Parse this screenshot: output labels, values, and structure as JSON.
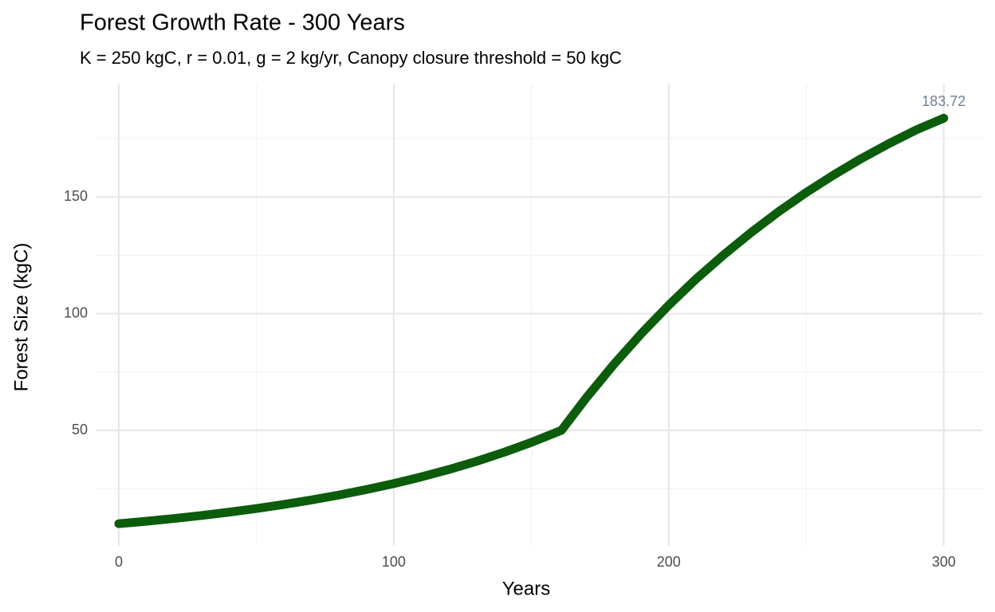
{
  "chart_data": {
    "type": "line",
    "title": "Forest Growth Rate - 300 Years",
    "subtitle": "K = 250 kgC, r = 0.01, g = 2 kg/yr, Canopy closure threshold = 50 kgC",
    "x_label": "Years",
    "y_label": "Forest Size (kgC)",
    "x": [
      0,
      10,
      20,
      30,
      40,
      50,
      60,
      70,
      80,
      90,
      100,
      110,
      120,
      130,
      140,
      150,
      160,
      161,
      170,
      180,
      190,
      200,
      210,
      220,
      230,
      240,
      250,
      260,
      270,
      280,
      290,
      300
    ],
    "series": [
      {
        "name": "Forest Size",
        "color": "#0b5c0b",
        "values": [
          10,
          11.05,
          12.21,
          13.5,
          14.92,
          16.49,
          18.22,
          20.14,
          22.26,
          24.6,
          27.18,
          30.04,
          33.2,
          36.69,
          40.55,
          44.82,
          49.53,
          50.03,
          63.9,
          78.2,
          91.4,
          103.6,
          114.9,
          125.2,
          134.8,
          143.7,
          151.9,
          159.4,
          166.4,
          172.8,
          178.7,
          183.72
        ]
      }
    ],
    "xlim": [
      -8.4,
      314
    ],
    "ylim": [
      0.5,
      198.5
    ],
    "xticks": [
      0,
      100,
      200,
      300
    ],
    "yticks": [
      50,
      100,
      150
    ],
    "x_minor_grid": [
      50,
      150,
      250
    ],
    "y_minor_grid": [
      25,
      75,
      125,
      175
    ],
    "grid": true
  }
}
